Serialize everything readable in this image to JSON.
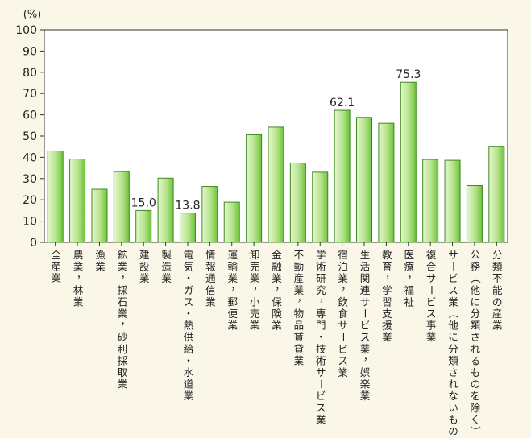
{
  "chart_data": {
    "type": "bar",
    "unit_label": "(%)",
    "ylim": [
      0,
      100
    ],
    "yticks": [
      0,
      10,
      20,
      30,
      40,
      50,
      60,
      70,
      80,
      90,
      100
    ],
    "grid": false,
    "categories": [
      "全産業",
      "農業，林業",
      "漁業",
      "鉱業，採石業，砂利採取業",
      "建設業",
      "製造業",
      "電気・ガス・熱供給・水道業",
      "情報通信業",
      "運輸業，郵便業",
      "卸売業，小売業",
      "金融業，保険業",
      "不動産業，物品賃貸業",
      "学術研究，専門・技術サービス業",
      "宿泊業，飲食サービス業",
      "生活関連サービス業，娯楽業",
      "教育，学習支援業",
      "医療，福祉",
      "複合サービス事業",
      "サービス業（他に分類されないもの）",
      "公務（他に分類されるものを除く）",
      "分類不能の産業"
    ],
    "values": [
      43.0,
      39.2,
      25.0,
      33.3,
      15.0,
      30.2,
      13.8,
      26.3,
      18.9,
      50.6,
      54.2,
      37.3,
      33.0,
      62.1,
      58.8,
      56.0,
      75.3,
      39.0,
      38.6,
      26.7,
      45.2
    ],
    "data_labels": [
      {
        "index": 4,
        "text": "15.0"
      },
      {
        "index": 6,
        "text": "13.8"
      },
      {
        "index": 13,
        "text": "62.1"
      },
      {
        "index": 16,
        "text": "75.3"
      }
    ],
    "colors": {
      "background": "#fbf7e8",
      "plot_background": "#ffffff",
      "bar_fill_light": "#e6f6cf",
      "bar_fill_dark": "#6ec23c",
      "bar_stroke": "#3c8a1e",
      "axis": "#333333",
      "text": "#222222"
    }
  }
}
